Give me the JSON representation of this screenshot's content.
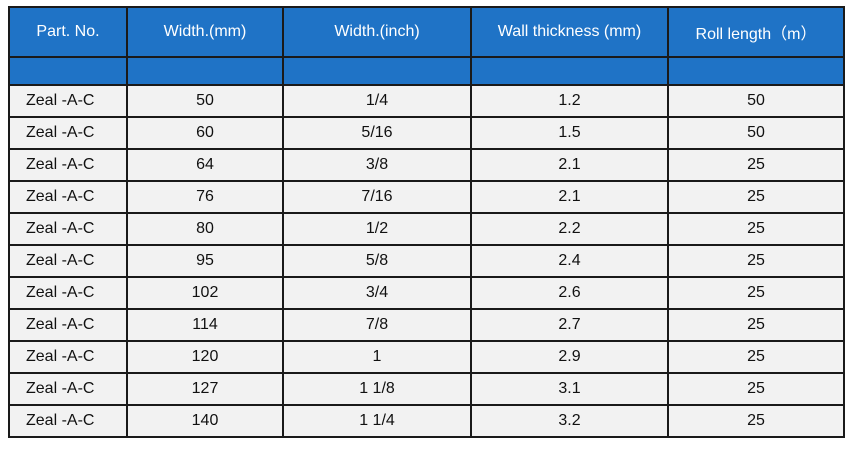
{
  "table": {
    "headers": [
      "Part. No.",
      "Width.(mm)",
      "Width.(inch)",
      "Wall thickness (mm)",
      "Roll length（m）"
    ],
    "rows": [
      [
        "Zeal -A-C",
        "50",
        "1/4",
        "1.2",
        "50"
      ],
      [
        "Zeal -A-C",
        "60",
        "5/16",
        "1.5",
        "50"
      ],
      [
        "Zeal -A-C",
        "64",
        "3/8",
        "2.1",
        "25"
      ],
      [
        "Zeal -A-C",
        "76",
        "7/16",
        "2.1",
        "25"
      ],
      [
        "Zeal -A-C",
        "80",
        "1/2",
        "2.2",
        "25"
      ],
      [
        "Zeal -A-C",
        "95",
        "5/8",
        "2.4",
        "25"
      ],
      [
        "Zeal -A-C",
        "102",
        "3/4",
        "2.6",
        "25"
      ],
      [
        "Zeal -A-C",
        "114",
        "7/8",
        "2.7",
        "25"
      ],
      [
        "Zeal -A-C",
        "120",
        "1",
        "2.9",
        "25"
      ],
      [
        "Zeal -A-C",
        "127",
        "1 1/8",
        "3.1",
        "25"
      ],
      [
        "Zeal -A-C",
        "140",
        "1 1/4",
        "3.2",
        "25"
      ]
    ]
  },
  "colors": {
    "header_bg": "#1f73c6",
    "header_text": "#ffffff",
    "row_bg": "#f2f2f2",
    "grid": "#1a1a1a"
  }
}
